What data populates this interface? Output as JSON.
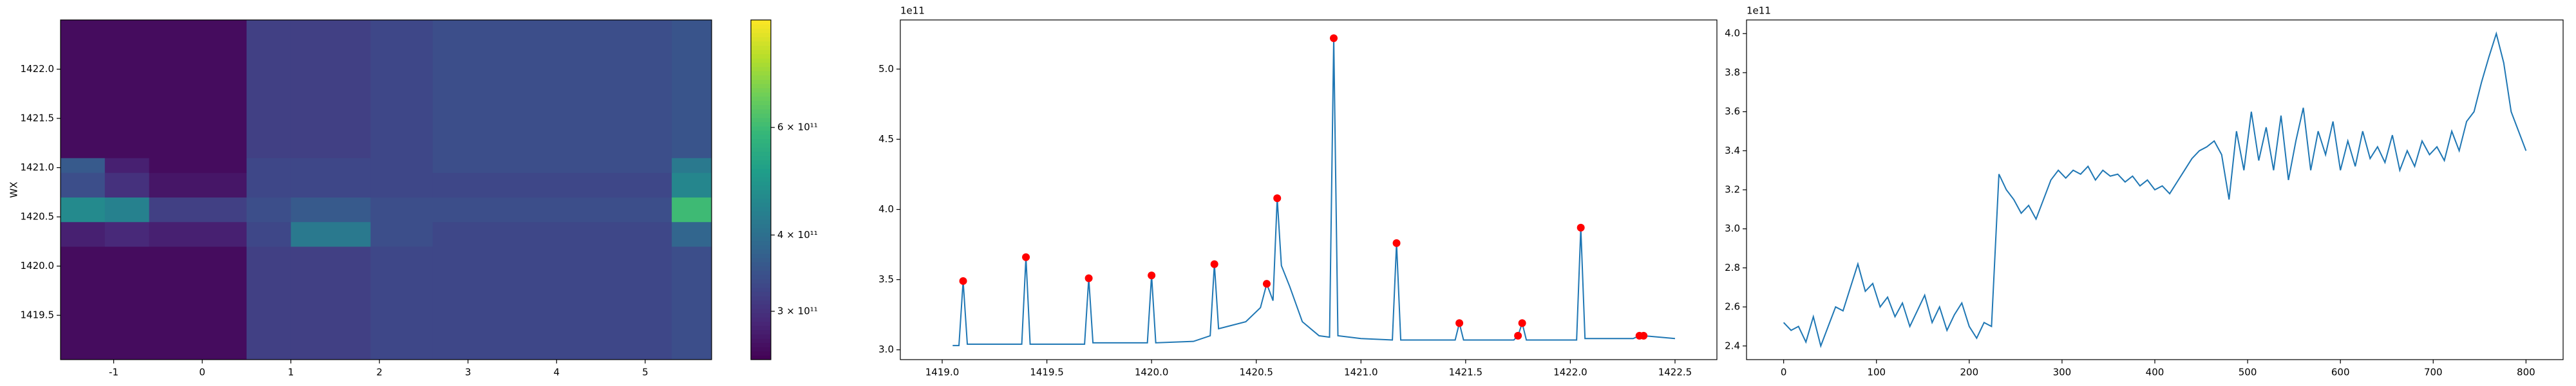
{
  "chart_data": [
    {
      "type": "heatmap",
      "ylabel": "WX",
      "colormap": "viridis",
      "color_scale": "log",
      "xlim": [
        -1.6,
        5.75
      ],
      "ylim": [
        1419.05,
        1422.5
      ],
      "xticks": [
        -1,
        0,
        1,
        2,
        3,
        4,
        5
      ],
      "yticks": [
        1419.5,
        {
          "value": 1420,
          "label": "1420.0"
        },
        1420.5,
        {
          "value": 1421,
          "label": "1421.0"
        },
        1421.5,
        {
          "value": 1422,
          "label": "1422.0"
        }
      ],
      "xbins": [
        -1.6,
        -1.1,
        -0.6,
        0.5,
        1.0,
        1.9,
        2.6,
        5.3,
        5.75
      ],
      "ybins": [
        1419.05,
        1420.2,
        1420.45,
        1420.7,
        1420.95,
        1421.1,
        1422.5
      ],
      "z": [
        [
          260000000000.0,
          260000000000.0,
          260000000000.0,
          320000000000.0,
          320000000000.0,
          330000000000.0,
          330000000000.0,
          340000000000.0
        ],
        [
          280000000000.0,
          290000000000.0,
          280000000000.0,
          330000000000.0,
          420000000000.0,
          340000000000.0,
          330000000000.0,
          380000000000.0
        ],
        [
          460000000000.0,
          440000000000.0,
          320000000000.0,
          340000000000.0,
          360000000000.0,
          340000000000.0,
          340000000000.0,
          600000000000.0
        ],
        [
          340000000000.0,
          300000000000.0,
          270000000000.0,
          330000000000.0,
          330000000000.0,
          330000000000.0,
          330000000000.0,
          450000000000.0
        ],
        [
          360000000000.0,
          280000000000.0,
          260000000000.0,
          330000000000.0,
          330000000000.0,
          330000000000.0,
          340000000000.0,
          420000000000.0
        ],
        [
          260000000000.0,
          260000000000.0,
          260000000000.0,
          320000000000.0,
          320000000000.0,
          330000000000.0,
          340000000000.0,
          350000000000.0
        ]
      ],
      "clim": [
        250000000000.0,
        900000000000.0
      ],
      "cticks": [
        {
          "value": 300000000000.0,
          "label": "3 × 10¹¹"
        },
        {
          "value": 400000000000.0,
          "label": "4 × 10¹¹"
        },
        {
          "value": 600000000000.0,
          "label": "6 × 10¹¹"
        }
      ]
    },
    {
      "type": "line",
      "color": "#1f77b4",
      "y_offset_text": "1e11",
      "xlim": [
        1418.8,
        1422.7
      ],
      "ylim": [
        2.93,
        5.35
      ],
      "xticks": [
        {
          "value": 1419,
          "label": "1419.0"
        },
        1419.5,
        {
          "value": 1420,
          "label": "1420.0"
        },
        1420.5,
        {
          "value": 1421,
          "label": "1421.0"
        },
        1421.5,
        {
          "value": 1422,
          "label": "1422.0"
        },
        1422.5
      ],
      "yticks": [
        {
          "value": 3,
          "label": "3.0"
        },
        3.5,
        {
          "value": 4,
          "label": "4.0"
        },
        4.5,
        {
          "value": 5,
          "label": "5.0"
        }
      ],
      "x": [
        1419.05,
        1419.08,
        1419.1,
        1419.12,
        1419.38,
        1419.4,
        1419.42,
        1419.68,
        1419.7,
        1419.72,
        1419.98,
        1420.0,
        1420.02,
        1420.2,
        1420.28,
        1420.3,
        1420.32,
        1420.45,
        1420.52,
        1420.55,
        1420.58,
        1420.6,
        1420.62,
        1420.66,
        1420.72,
        1420.8,
        1420.85,
        1420.87,
        1420.89,
        1421.0,
        1421.15,
        1421.17,
        1421.19,
        1421.45,
        1421.47,
        1421.49,
        1421.73,
        1421.75,
        1421.77,
        1421.79,
        1422.03,
        1422.05,
        1422.07,
        1422.3,
        1422.33,
        1422.35,
        1422.5
      ],
      "values": [
        3.03,
        3.03,
        3.49,
        3.04,
        3.04,
        3.66,
        3.04,
        3.04,
        3.51,
        3.05,
        3.05,
        3.53,
        3.05,
        3.06,
        3.1,
        3.61,
        3.15,
        3.2,
        3.3,
        3.47,
        3.35,
        4.08,
        3.6,
        3.45,
        3.2,
        3.1,
        3.09,
        5.22,
        3.1,
        3.08,
        3.07,
        3.76,
        3.07,
        3.07,
        3.19,
        3.07,
        3.07,
        3.1,
        3.19,
        3.07,
        3.07,
        3.87,
        3.08,
        3.08,
        3.1,
        3.1,
        3.08
      ],
      "markers": {
        "color": "#ff0000",
        "x": [
          1419.1,
          1419.4,
          1419.7,
          1420.0,
          1420.3,
          1420.55,
          1420.6,
          1420.87,
          1421.17,
          1421.47,
          1421.75,
          1421.77,
          1422.05,
          1422.33,
          1422.35
        ],
        "values": [
          3.49,
          3.66,
          3.51,
          3.53,
          3.61,
          3.47,
          4.08,
          5.22,
          3.76,
          3.19,
          3.1,
          3.19,
          3.87,
          3.1,
          3.1
        ]
      }
    },
    {
      "type": "line",
      "color": "#1f77b4",
      "y_offset_text": "1e11",
      "xlim": [
        -40,
        840
      ],
      "ylim": [
        2.33,
        4.07
      ],
      "xticks": [
        0,
        100,
        200,
        300,
        400,
        500,
        600,
        700,
        800
      ],
      "yticks": [
        2.4,
        2.6,
        2.8,
        {
          "value": 3,
          "label": "3.0"
        },
        3.2,
        3.4,
        3.6,
        3.8,
        {
          "value": 4,
          "label": "4.0"
        }
      ],
      "x": [
        0,
        8,
        16,
        24,
        32,
        40,
        48,
        56,
        64,
        72,
        80,
        88,
        96,
        104,
        112,
        120,
        128,
        136,
        144,
        152,
        160,
        168,
        176,
        184,
        192,
        200,
        208,
        216,
        224,
        232,
        240,
        248,
        256,
        264,
        272,
        280,
        288,
        296,
        304,
        312,
        320,
        328,
        336,
        344,
        352,
        360,
        368,
        376,
        384,
        392,
        400,
        408,
        416,
        424,
        432,
        440,
        448,
        456,
        464,
        472,
        480,
        488,
        496,
        504,
        512,
        520,
        528,
        536,
        544,
        552,
        560,
        568,
        576,
        584,
        592,
        600,
        608,
        616,
        624,
        632,
        640,
        648,
        656,
        664,
        672,
        680,
        688,
        696,
        704,
        712,
        720,
        728,
        736,
        744,
        752,
        760,
        768,
        776,
        784,
        792,
        800
      ],
      "values": [
        2.52,
        2.48,
        2.5,
        2.42,
        2.55,
        2.4,
        2.5,
        2.6,
        2.58,
        2.7,
        2.82,
        2.68,
        2.72,
        2.6,
        2.65,
        2.55,
        2.62,
        2.5,
        2.58,
        2.66,
        2.52,
        2.6,
        2.48,
        2.56,
        2.62,
        2.5,
        2.44,
        2.52,
        2.5,
        3.28,
        3.2,
        3.15,
        3.08,
        3.12,
        3.05,
        3.15,
        3.25,
        3.3,
        3.26,
        3.3,
        3.28,
        3.32,
        3.25,
        3.3,
        3.27,
        3.28,
        3.24,
        3.27,
        3.22,
        3.25,
        3.2,
        3.22,
        3.18,
        3.24,
        3.3,
        3.36,
        3.4,
        3.42,
        3.45,
        3.38,
        3.15,
        3.5,
        3.3,
        3.6,
        3.35,
        3.52,
        3.3,
        3.58,
        3.25,
        3.45,
        3.62,
        3.3,
        3.5,
        3.38,
        3.55,
        3.3,
        3.45,
        3.32,
        3.5,
        3.36,
        3.42,
        3.34,
        3.48,
        3.3,
        3.4,
        3.32,
        3.45,
        3.38,
        3.42,
        3.35,
        3.5,
        3.4,
        3.55,
        3.6,
        3.75,
        3.88,
        4.0,
        3.85,
        3.6,
        3.5,
        3.4
      ]
    }
  ]
}
